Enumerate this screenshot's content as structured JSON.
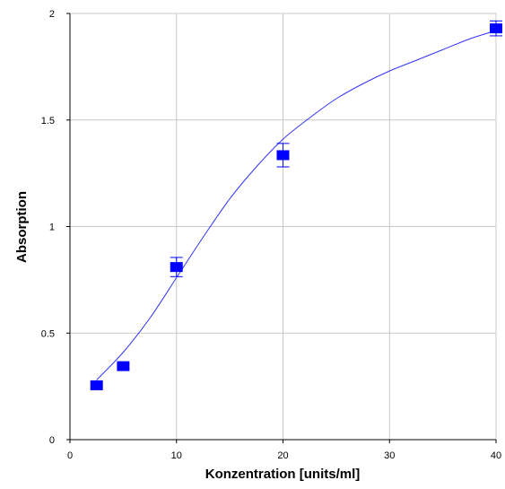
{
  "chart_data": {
    "type": "scatter",
    "title": "",
    "xlabel": "Konzentration [units/ml]",
    "ylabel": "Absorption",
    "xlim": [
      0,
      40
    ],
    "ylim": [
      0,
      2
    ],
    "x_ticks": [
      0,
      10,
      20,
      30,
      40
    ],
    "y_ticks": [
      0,
      0.5,
      1,
      1.5,
      2
    ],
    "x_tick_labels": [
      "0",
      "10",
      "20",
      "30",
      "40"
    ],
    "y_tick_labels": [
      "0",
      "0.5",
      "1",
      "1.5",
      "2"
    ],
    "grid": true,
    "legend": "none",
    "series": [
      {
        "marker": "square",
        "color": "#0000ff",
        "points": [
          {
            "x": 2.5,
            "y": 0.255,
            "err": 0.0
          },
          {
            "x": 5,
            "y": 0.345,
            "err": 0.0
          },
          {
            "x": 10,
            "y": 0.81,
            "err": 0.045
          },
          {
            "x": 20,
            "y": 1.335,
            "err": 0.055
          },
          {
            "x": 40,
            "y": 1.93,
            "err": 0.035
          }
        ]
      }
    ],
    "fit_curve": {
      "color": "#3333ff",
      "x": [
        2.5,
        5,
        7.5,
        10,
        12.5,
        15,
        17.5,
        20,
        22.5,
        25,
        27.5,
        30,
        32.5,
        35,
        37.5,
        40
      ],
      "y": [
        0.28,
        0.41,
        0.57,
        0.76,
        0.95,
        1.13,
        1.28,
        1.41,
        1.51,
        1.6,
        1.67,
        1.73,
        1.78,
        1.83,
        1.88,
        1.92
      ]
    }
  }
}
